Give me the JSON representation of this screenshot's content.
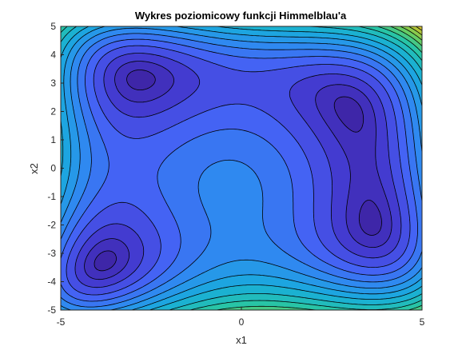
{
  "chart_data": {
    "type": "contour",
    "title": "Wykres poziomicowy funkcji Himmelblau'a",
    "xlabel": "x1",
    "ylabel": "x2",
    "xlim": [
      -5,
      5
    ],
    "ylim": [
      -5,
      5
    ],
    "x_ticks": [
      "-5",
      "0",
      "5"
    ],
    "y_ticks": [
      "5",
      "4",
      "3",
      "2",
      "1",
      "0",
      "-1",
      "-2",
      "-3",
      "-4",
      "-5"
    ],
    "function": "(x1^2 + x2 - 11)^2 + (x1 + x2^2 - 7)^2",
    "filled": true,
    "colormap": "parula",
    "grid": false,
    "minima_regions": [
      {
        "x1": -2.8,
        "x2": 3.1
      },
      {
        "x1": 3.0,
        "x2": 2.0
      },
      {
        "x1": 3.6,
        "x2": -1.8
      },
      {
        "x1": -3.8,
        "x2": -3.3
      }
    ],
    "colors": {
      "low": "#3e26a8",
      "mid": "#2e8ef0",
      "high": "#f9fb0e",
      "line": "#000000"
    }
  }
}
